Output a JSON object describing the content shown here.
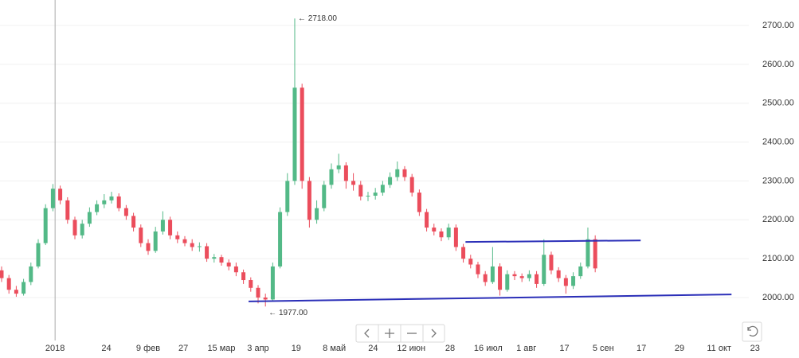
{
  "chart_data": {
    "type": "candlestick",
    "open": [
      2070,
      2050,
      2020,
      2010,
      2040,
      2080,
      2140,
      2230,
      2280,
      2250,
      2200,
      2160,
      2190,
      2220,
      2240,
      2250,
      2260,
      2230,
      2210,
      2180,
      2140,
      2120,
      2170,
      2200,
      2160,
      2150,
      2140,
      2130,
      2132,
      2100,
      2104,
      2090,
      2080,
      2065,
      2045,
      2025,
      2000,
      1995,
      2080,
      2220,
      2300,
      2540,
      2300,
      2200,
      2230,
      2290,
      2330,
      2340,
      2300,
      2290,
      2260,
      2262,
      2270,
      2290,
      2310,
      2330,
      2310,
      2270,
      2220,
      2180,
      2170,
      2155,
      2180,
      2130,
      2100,
      2085,
      2060,
      2040,
      2080,
      2020,
      2060,
      2055,
      2050,
      2060,
      2035,
      2110,
      2070,
      2050,
      2030,
      2055,
      2080,
      2150
    ],
    "high": [
      2080,
      2058,
      2030,
      2048,
      2090,
      2150,
      2240,
      2292,
      2288,
      2258,
      2208,
      2200,
      2232,
      2250,
      2266,
      2272,
      2268,
      2238,
      2218,
      2188,
      2150,
      2182,
      2222,
      2208,
      2170,
      2158,
      2150,
      2142,
      2140,
      2112,
      2110,
      2098,
      2090,
      2072,
      2052,
      2032,
      2010,
      2090,
      2232,
      2320,
      2718,
      2550,
      2310,
      2250,
      2300,
      2345,
      2370,
      2348,
      2320,
      2300,
      2272,
      2282,
      2300,
      2322,
      2350,
      2338,
      2318,
      2278,
      2228,
      2190,
      2178,
      2190,
      2188,
      2138,
      2110,
      2092,
      2068,
      2130,
      2088,
      2070,
      2068,
      2062,
      2070,
      2068,
      2150,
      2118,
      2078,
      2058,
      2065,
      2090,
      2180,
      2160
    ],
    "low": [
      2040,
      2010,
      2002,
      2005,
      2032,
      2075,
      2135,
      2222,
      2240,
      2190,
      2150,
      2152,
      2182,
      2212,
      2230,
      2242,
      2222,
      2200,
      2170,
      2130,
      2110,
      2115,
      2162,
      2150,
      2140,
      2132,
      2120,
      2118,
      2092,
      2090,
      2082,
      2070,
      2055,
      2035,
      2015,
      1985,
      1977,
      1990,
      2075,
      2210,
      2290,
      2280,
      2180,
      2190,
      2222,
      2280,
      2320,
      2280,
      2275,
      2250,
      2248,
      2252,
      2262,
      2282,
      2300,
      2300,
      2260,
      2210,
      2170,
      2160,
      2145,
      2148,
      2120,
      2090,
      2075,
      2050,
      2030,
      2035,
      2005,
      2015,
      2045,
      2040,
      2042,
      2025,
      2030,
      2060,
      2040,
      2010,
      2022,
      2048,
      2075,
      2065
    ],
    "close": [
      2050,
      2020,
      2010,
      2040,
      2080,
      2140,
      2230,
      2280,
      2250,
      2200,
      2160,
      2190,
      2220,
      2240,
      2250,
      2260,
      2230,
      2210,
      2180,
      2140,
      2120,
      2170,
      2200,
      2160,
      2150,
      2140,
      2130,
      2132,
      2100,
      2104,
      2090,
      2080,
      2065,
      2045,
      2025,
      2000,
      1995,
      2080,
      2220,
      2300,
      2540,
      2300,
      2200,
      2230,
      2290,
      2330,
      2340,
      2300,
      2290,
      2260,
      2262,
      2270,
      2290,
      2310,
      2330,
      2310,
      2270,
      2220,
      2180,
      2170,
      2155,
      2180,
      2130,
      2100,
      2085,
      2060,
      2040,
      2080,
      2020,
      2060,
      2055,
      2050,
      2060,
      2035,
      2110,
      2070,
      2050,
      2030,
      2055,
      2080,
      2150,
      2075
    ],
    "up_color": "#53b987",
    "down_color": "#eb4d5c",
    "xlim": [
      -0.217,
      101.96
    ],
    "xticks": [
      {
        "value": 7.3,
        "label": "2018"
      },
      {
        "value": 14.3,
        "label": "24"
      },
      {
        "value": 20,
        "label": "9 фев"
      },
      {
        "value": 24.8,
        "label": "27"
      },
      {
        "value": 30,
        "label": "15 мар"
      },
      {
        "value": 35,
        "label": "3 апр"
      },
      {
        "value": 40.2,
        "label": "19"
      },
      {
        "value": 45.4,
        "label": "8 май"
      },
      {
        "value": 50.7,
        "label": "24"
      },
      {
        "value": 55.9,
        "label": "12 июн"
      },
      {
        "value": 61.2,
        "label": "28"
      },
      {
        "value": 66.4,
        "label": "16 июл"
      },
      {
        "value": 71.6,
        "label": "1 авг"
      },
      {
        "value": 76.8,
        "label": "17"
      },
      {
        "value": 82.1,
        "label": "5 сен"
      },
      {
        "value": 87.3,
        "label": "17"
      },
      {
        "value": 92.5,
        "label": "29"
      },
      {
        "value": 97.9,
        "label": "11 окт"
      },
      {
        "value": 102.8,
        "label": "23"
      }
    ],
    "ylim": [
      1889.5,
      2765.5
    ],
    "yticks": [
      {
        "value": 2000,
        "label": "2000.00"
      },
      {
        "value": 2100,
        "label": "2100.00"
      },
      {
        "value": 2200,
        "label": "2200.00"
      },
      {
        "value": 2300,
        "label": "2300.00"
      },
      {
        "value": 2400,
        "label": "2400.00"
      },
      {
        "value": 2500,
        "label": "2500.00"
      },
      {
        "value": 2600,
        "label": "2600.00"
      },
      {
        "value": 2700,
        "label": "2700.00"
      }
    ],
    "grid": true,
    "annotations": [
      {
        "x": 40,
        "y": 2718,
        "label": "← 2718.00"
      },
      {
        "x": 36,
        "y": 1977,
        "label": "← 1977.00"
      }
    ],
    "trend_lines": [
      {
        "color": "#2b2fb8",
        "x": [
          33.7,
          99.6
        ],
        "y": [
          1990,
          2008
        ]
      },
      {
        "color": "#2b2fb8",
        "x": [
          63.3,
          87.2
        ],
        "y": [
          2143,
          2147
        ]
      }
    ]
  }
}
